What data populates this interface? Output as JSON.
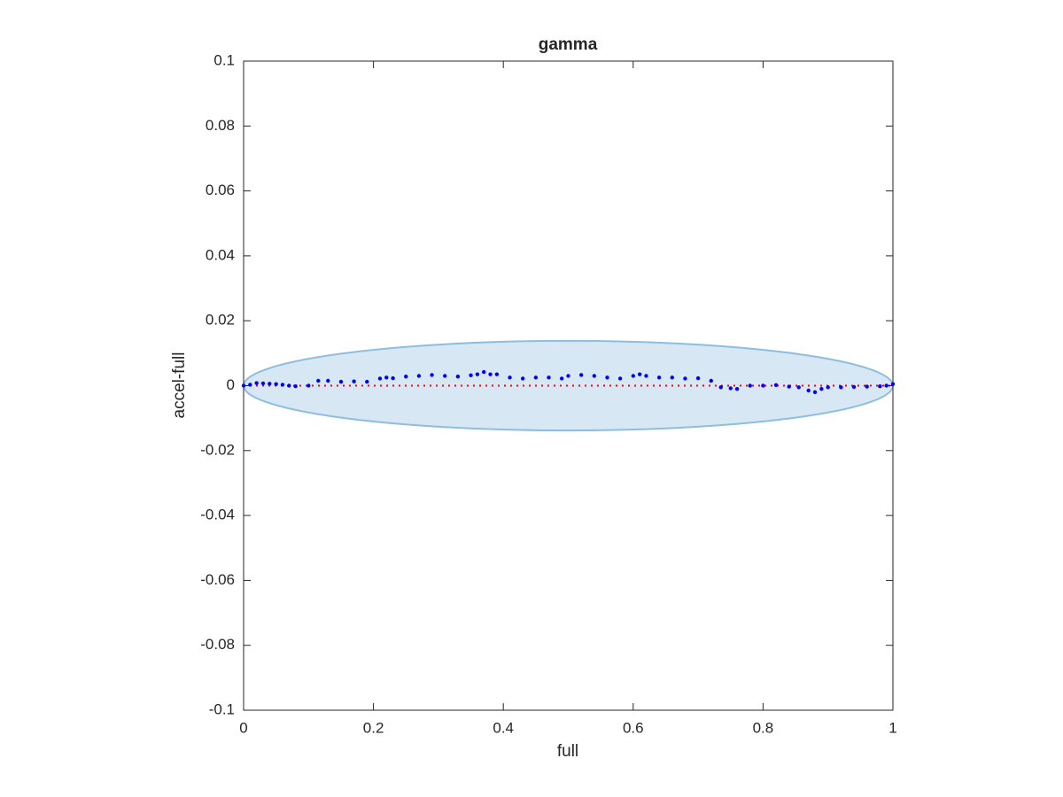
{
  "chart_data": {
    "type": "scatter",
    "title": "gamma",
    "x_label": "full",
    "y_label": "accel-full",
    "xlim": [
      0,
      1
    ],
    "ylim": [
      -0.1,
      0.1
    ],
    "xticks": [
      0,
      0.2,
      0.4,
      0.6,
      0.8,
      1
    ],
    "yticks": [
      -0.1,
      -0.08,
      -0.06,
      -0.04,
      -0.02,
      0,
      0.02,
      0.04,
      0.06,
      0.08,
      0.1
    ],
    "ellipse": {
      "center": [
        0.5,
        0
      ],
      "radii": [
        0.5,
        0.0138
      ],
      "color": "#8dbde0"
    },
    "reference_line": {
      "y": 0,
      "color": "#ff0000"
    },
    "series": [
      {
        "color": "#0000ff",
        "x": [
          0,
          0.01,
          0.02,
          0.03,
          0.04,
          0.05,
          0.06,
          0.07,
          0.08,
          0.1,
          0.115,
          0.13,
          0.15,
          0.17,
          0.19,
          0.21,
          0.22,
          0.23,
          0.25,
          0.27,
          0.29,
          0.31,
          0.33,
          0.35,
          0.36,
          0.37,
          0.38,
          0.39,
          0.41,
          0.43,
          0.45,
          0.47,
          0.49,
          0.5,
          0.52,
          0.54,
          0.56,
          0.58,
          0.6,
          0.61,
          0.62,
          0.64,
          0.66,
          0.68,
          0.7,
          0.72,
          0.735,
          0.75,
          0.76,
          0.78,
          0.8,
          0.82,
          0.84,
          0.855,
          0.87,
          0.88,
          0.89,
          0.9,
          0.92,
          0.94,
          0.96,
          0.98,
          0.99,
          1.0
        ],
        "values": [
          0,
          0.0003,
          0.0008,
          0.0007,
          0.0006,
          0.0005,
          0.0003,
          0,
          -0.0002,
          0,
          0.0015,
          0.0015,
          0.0012,
          0.0013,
          0.0012,
          0.0022,
          0.0025,
          0.0023,
          0.0028,
          0.003,
          0.0033,
          0.003,
          0.0028,
          0.0032,
          0.0035,
          0.0042,
          0.0035,
          0.0035,
          0.0025,
          0.0022,
          0.0025,
          0.0025,
          0.0022,
          0.003,
          0.0033,
          0.003,
          0.0025,
          0.0022,
          0.003,
          0.0035,
          0.003,
          0.0025,
          0.0025,
          0.0022,
          0.0023,
          0.0015,
          -0.0005,
          -0.0008,
          -0.001,
          0,
          0,
          0.0002,
          -0.0003,
          -0.0005,
          -0.0015,
          -0.002,
          -0.001,
          -0.0005,
          -0.0005,
          -0.0004,
          -0.0003,
          -0.0002,
          0,
          0.0005
        ]
      }
    ]
  }
}
